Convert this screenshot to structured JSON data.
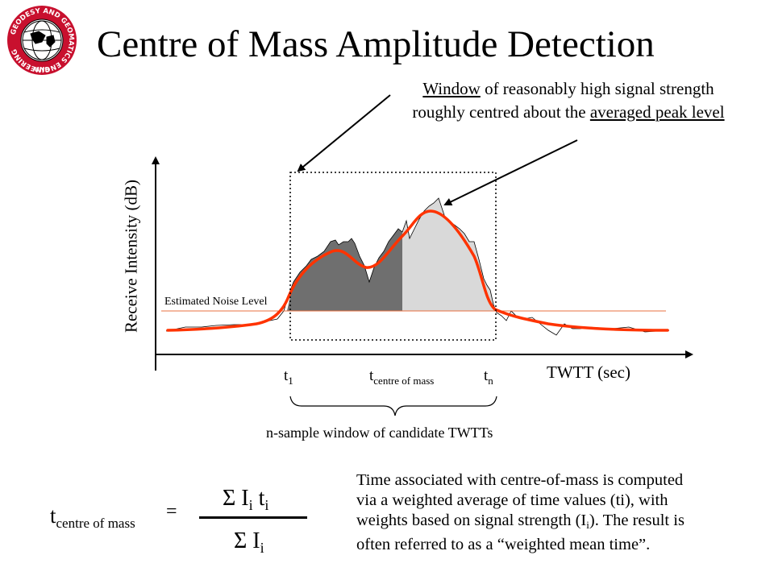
{
  "title": "Centre of Mass Amplitude Detection",
  "logo": {
    "ring_text": "GEODESY AND GEOMATICS ENGINEERING",
    "bottom_text": "UNB"
  },
  "callout": {
    "part1_underlined": "Window",
    "part1_rest": " of reasonably high signal strength",
    "part2_prefix": "roughly centred about the ",
    "part2_underlined": "averaged peak level"
  },
  "axes": {
    "ylabel": "Receive Intensity (dB)",
    "xlabel": "TWTT (sec)"
  },
  "noise_label": "Estimated Noise Level",
  "ticks": {
    "t1_base": "t",
    "t1_sub": "1",
    "tcm_base": "t",
    "tcm_sub": "centre of mass",
    "tn_base": "t",
    "tn_sub": "n"
  },
  "window_caption": "n-sample window of candidate TWTTs",
  "formula": {
    "lhs_base": "t",
    "lhs_sub": "centre of mass",
    "equals": "=",
    "num_sigma": "Σ I",
    "num_i": "i",
    "num_t": " t",
    "num_ti": "i",
    "den_sigma": "Σ I",
    "den_i": "i"
  },
  "explanation": {
    "line1": "Time associated with centre-of-mass is computed",
    "line2": "via a weighted average of time values (ti), with",
    "line3_pre": "weights based on signal strength (I",
    "line3_sub": "i",
    "line3_post": ").  The result is",
    "line4": "often referred to as a “weighted mean time”."
  },
  "colors": {
    "smooth_curve": "#ff3300",
    "noise_line": "#e87040",
    "fill_dark": "#6f6f6f",
    "fill_light": "#d9d9d9"
  }
}
